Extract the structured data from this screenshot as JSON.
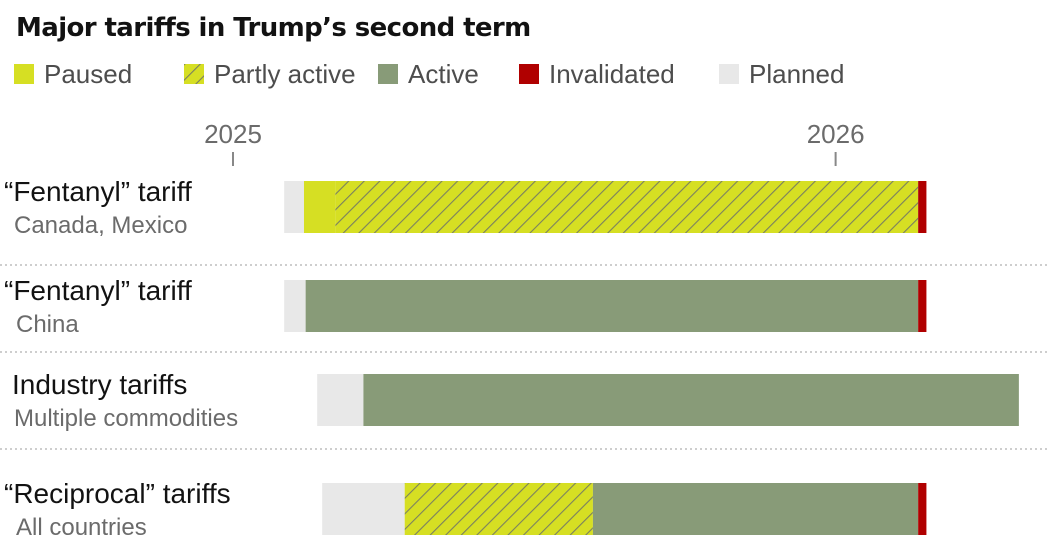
{
  "chart_data": {
    "type": "bar",
    "title": "Major tariffs in Trump’s second term",
    "legend_position": "top-left",
    "status_colors": {
      "Paused": "#d6df23",
      "Partly active": "#d6df23",
      "Active": "#889b78",
      "Invalidated": "#b00000",
      "Planned": "#e8e8e8"
    },
    "legend": [
      {
        "label": "Paused",
        "status": "paused",
        "color": "#d6df23",
        "pattern": "solid"
      },
      {
        "label": "Partly active",
        "status": "partly",
        "color": "#d6df23",
        "pattern": "hatched"
      },
      {
        "label": "Active",
        "status": "active",
        "color": "#889b78",
        "pattern": "solid"
      },
      {
        "label": "Invalidated",
        "status": "invalidated",
        "color": "#b00000",
        "pattern": "solid"
      },
      {
        "label": "Planned",
        "status": "planned",
        "color": "#e8e8e8",
        "pattern": "solid"
      }
    ],
    "x_axis": {
      "ticks": [
        {
          "label": "2025",
          "value": "2025-01-01"
        },
        {
          "label": "2026",
          "value": "2026-01-01"
        }
      ],
      "range": [
        "2024-11-25",
        "2026-04-22"
      ]
    },
    "rows": [
      {
        "title": "“Fentanyl” tariff",
        "subtitle": "Canada, Mexico",
        "segments": [
          {
            "status": "planned",
            "start": "2025-02-01",
            "end": "2025-02-13"
          },
          {
            "status": "paused",
            "start": "2025-02-13",
            "end": "2025-03-04"
          },
          {
            "status": "partly",
            "start": "2025-03-04",
            "end": "2026-02-20"
          },
          {
            "status": "invalidated",
            "start": "2026-02-20",
            "end": "2026-02-25"
          }
        ]
      },
      {
        "title": "“Fentanyl” tariff",
        "subtitle": "China",
        "segments": [
          {
            "status": "planned",
            "start": "2025-02-01",
            "end": "2025-02-14"
          },
          {
            "status": "active",
            "start": "2025-02-14",
            "end": "2026-02-20"
          },
          {
            "status": "invalidated",
            "start": "2026-02-20",
            "end": "2026-02-25"
          }
        ]
      },
      {
        "title": "Industry tariffs",
        "subtitle": "Multiple commodities",
        "segments": [
          {
            "status": "planned",
            "start": "2025-02-21",
            "end": "2025-03-21"
          },
          {
            "status": "active",
            "start": "2025-03-21",
            "end": "2026-04-22"
          }
        ]
      },
      {
        "title": "“Reciprocal” tariffs",
        "subtitle": "All countries",
        "segments": [
          {
            "status": "planned",
            "start": "2025-02-24",
            "end": "2025-04-15"
          },
          {
            "status": "partly",
            "start": "2025-04-15",
            "end": "2025-08-07"
          },
          {
            "status": "active",
            "start": "2025-08-07",
            "end": "2026-02-20"
          },
          {
            "status": "invalidated",
            "start": "2026-02-20",
            "end": "2026-02-25"
          }
        ]
      }
    ]
  }
}
